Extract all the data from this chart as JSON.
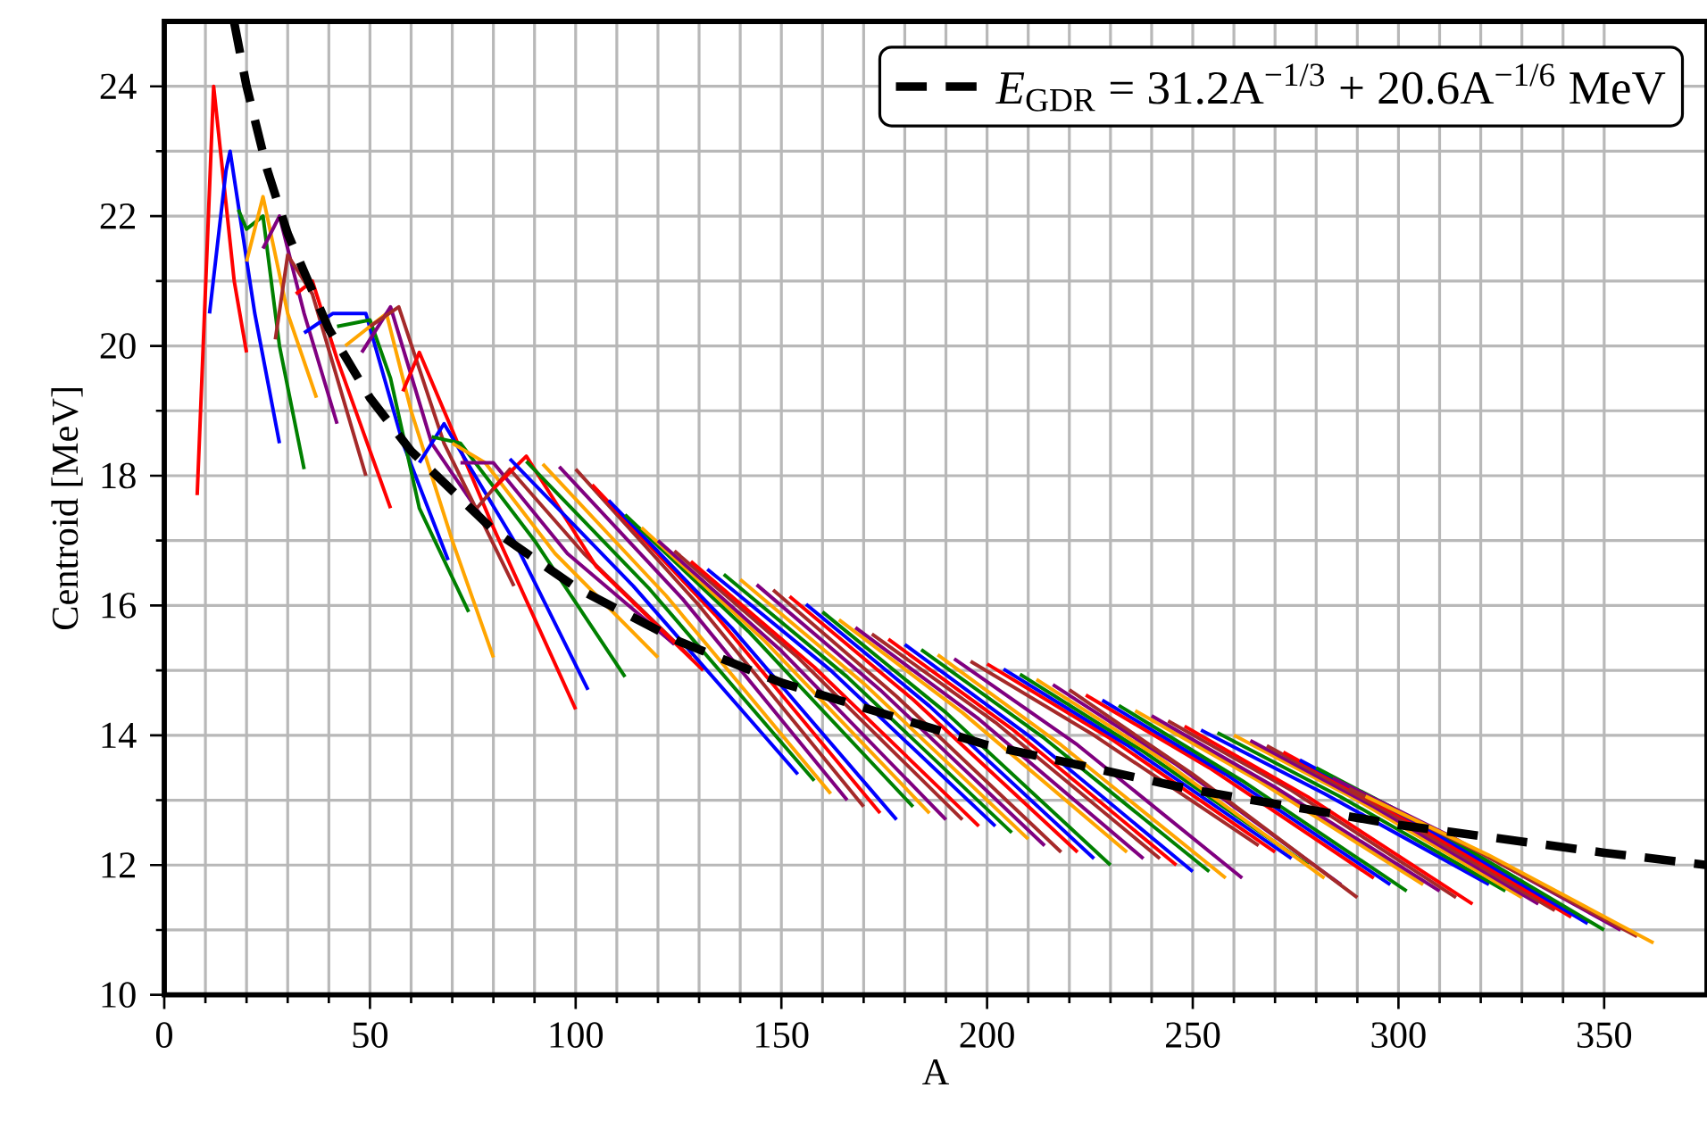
{
  "chart_data": {
    "type": "line",
    "xlabel": "A",
    "ylabel": "Centroid [MeV]",
    "xlim": [
      0,
      375
    ],
    "ylim": [
      10,
      25
    ],
    "xticks": [
      0,
      50,
      100,
      150,
      200,
      250,
      300,
      350
    ],
    "yticks": [
      10,
      12,
      14,
      16,
      18,
      20,
      22,
      24
    ],
    "grid": true,
    "legend": "top right",
    "series": [
      {
        "color": "#ff0000",
        "x": [
          8,
          12,
          17,
          20
        ],
        "values": [
          17.7,
          24.0,
          21.0,
          19.9
        ]
      },
      {
        "color": "#0000ff",
        "x": [
          11,
          15,
          16,
          22,
          28
        ],
        "values": [
          20.5,
          22.7,
          23.0,
          20.5,
          18.5
        ]
      },
      {
        "color": "#008000",
        "x": [
          18,
          20,
          24,
          28,
          34
        ],
        "values": [
          22.1,
          21.8,
          22.0,
          20.0,
          18.1
        ]
      },
      {
        "color": "#ffa500",
        "x": [
          20,
          24,
          30,
          37
        ],
        "values": [
          21.3,
          22.3,
          20.5,
          19.2
        ]
      },
      {
        "color": "#800080",
        "x": [
          24,
          28,
          34,
          42
        ],
        "values": [
          21.5,
          22.0,
          20.5,
          18.8
        ]
      },
      {
        "color": "#a52a2a",
        "x": [
          27,
          30,
          36,
          49
        ],
        "values": [
          20.1,
          21.4,
          20.8,
          18.0
        ]
      },
      {
        "color": "#ff0000",
        "x": [
          32,
          36,
          42,
          55
        ],
        "values": [
          20.8,
          21.0,
          19.8,
          17.5
        ]
      },
      {
        "color": "#0000ff",
        "x": [
          34,
          41,
          49,
          58,
          69
        ],
        "values": [
          20.2,
          20.5,
          20.5,
          18.5,
          16.7
        ]
      },
      {
        "color": "#008000",
        "x": [
          42,
          50,
          55,
          62,
          74
        ],
        "values": [
          20.3,
          20.4,
          19.5,
          17.5,
          15.9
        ]
      },
      {
        "color": "#ffa500",
        "x": [
          44,
          54,
          60,
          70,
          80
        ],
        "values": [
          20.0,
          20.5,
          19.0,
          17.0,
          15.2
        ]
      },
      {
        "color": "#800080",
        "x": [
          48,
          55,
          65,
          79
        ],
        "values": [
          19.9,
          20.6,
          18.5,
          17.2
        ]
      },
      {
        "color": "#a52a2a",
        "x": [
          50,
          57,
          68,
          85
        ],
        "values": [
          20.3,
          20.6,
          18.5,
          16.3
        ]
      },
      {
        "color": "#ff0000",
        "x": [
          58,
          62,
          80,
          100
        ],
        "values": [
          19.3,
          19.9,
          17.2,
          14.4
        ]
      },
      {
        "color": "#0000ff",
        "x": [
          62,
          68,
          85,
          103
        ],
        "values": [
          18.2,
          18.8,
          17.0,
          14.7
        ]
      },
      {
        "color": "#008000",
        "x": [
          65,
          72,
          90,
          112
        ],
        "values": [
          18.6,
          18.5,
          17.0,
          14.9
        ]
      },
      {
        "color": "#ffa500",
        "x": [
          70,
          78,
          95,
          120
        ],
        "values": [
          18.5,
          18.2,
          16.8,
          15.2
        ]
      },
      {
        "color": "#800080",
        "x": [
          72,
          80,
          98,
          124
        ],
        "values": [
          18.2,
          18.2,
          16.8,
          15.4
        ]
      },
      {
        "color": "#a52a2a",
        "x": [
          76,
          84,
          102,
          128
        ],
        "values": [
          17.5,
          18.1,
          16.8,
          15.2
        ]
      },
      {
        "color": "#ff0000",
        "x": [
          80,
          88,
          105,
          131
        ],
        "values": [
          17.8,
          18.3,
          16.6,
          15.0
        ]
      },
      {
        "color": "#0000ff",
        "x": [
          84,
          114,
          154
        ],
        "values": [
          18.26,
          16.3,
          13.4
        ]
      },
      {
        "color": "#008000",
        "x": [
          88,
          118,
          158
        ],
        "values": [
          18.22,
          16.25,
          13.3
        ]
      },
      {
        "color": "#ffa500",
        "x": [
          92,
          122,
          162
        ],
        "values": [
          18.18,
          16.15,
          13.1
        ]
      },
      {
        "color": "#800080",
        "x": [
          96,
          126,
          166
        ],
        "values": [
          18.14,
          16.1,
          13.0
        ]
      },
      {
        "color": "#a52a2a",
        "x": [
          100,
          130,
          170
        ],
        "values": [
          18.1,
          16.0,
          12.9
        ]
      },
      {
        "color": "#ff0000",
        "x": [
          104,
          134,
          174
        ],
        "values": [
          17.86,
          15.85,
          12.8
        ]
      },
      {
        "color": "#0000ff",
        "x": [
          108,
          138,
          178
        ],
        "values": [
          17.62,
          15.65,
          12.7
        ]
      },
      {
        "color": "#008000",
        "x": [
          112,
          142,
          182
        ],
        "values": [
          17.4,
          15.6,
          12.9
        ]
      },
      {
        "color": "#ffa500",
        "x": [
          116,
          146,
          186
        ],
        "values": [
          17.2,
          15.45,
          12.8
        ]
      },
      {
        "color": "#800080",
        "x": [
          120,
          150,
          190
        ],
        "values": [
          17.0,
          15.3,
          12.7
        ]
      },
      {
        "color": "#a52a2a",
        "x": [
          124,
          154,
          194
        ],
        "values": [
          16.84,
          15.2,
          12.7
        ]
      },
      {
        "color": "#ff0000",
        "x": [
          128,
          158,
          198
        ],
        "values": [
          16.68,
          15.05,
          12.6
        ]
      },
      {
        "color": "#0000ff",
        "x": [
          132,
          162,
          202
        ],
        "values": [
          16.56,
          15.0,
          12.6
        ]
      },
      {
        "color": "#008000",
        "x": [
          136,
          166,
          206
        ],
        "values": [
          16.48,
          14.9,
          12.5
        ]
      },
      {
        "color": "#ffa500",
        "x": [
          140,
          170,
          210
        ],
        "values": [
          16.4,
          14.8,
          12.4
        ]
      },
      {
        "color": "#800080",
        "x": [
          144,
          174,
          214
        ],
        "values": [
          16.32,
          14.7,
          12.3
        ]
      },
      {
        "color": "#a52a2a",
        "x": [
          148,
          178,
          218
        ],
        "values": [
          16.24,
          14.6,
          12.2
        ]
      },
      {
        "color": "#ff0000",
        "x": [
          152,
          182,
          222
        ],
        "values": [
          16.14,
          14.55,
          12.2
        ]
      },
      {
        "color": "#0000ff",
        "x": [
          156,
          186,
          226
        ],
        "values": [
          16.02,
          14.45,
          12.1
        ]
      },
      {
        "color": "#008000",
        "x": [
          160,
          190,
          230
        ],
        "values": [
          15.9,
          14.35,
          12.0
        ]
      },
      {
        "color": "#ffa500",
        "x": [
          164,
          194,
          234
        ],
        "values": [
          15.78,
          14.35,
          12.2
        ]
      },
      {
        "color": "#800080",
        "x": [
          168,
          198,
          238
        ],
        "values": [
          15.66,
          14.25,
          12.1
        ]
      },
      {
        "color": "#a52a2a",
        "x": [
          172,
          202,
          242
        ],
        "values": [
          15.56,
          14.2,
          12.1
        ]
      },
      {
        "color": "#ff0000",
        "x": [
          176,
          206,
          246
        ],
        "values": [
          15.48,
          14.1,
          12.0
        ]
      },
      {
        "color": "#0000ff",
        "x": [
          180,
          210,
          250
        ],
        "values": [
          15.4,
          14.0,
          11.9
        ]
      },
      {
        "color": "#008000",
        "x": [
          184,
          214,
          254
        ],
        "values": [
          15.32,
          13.95,
          11.9
        ]
      },
      {
        "color": "#ffa500",
        "x": [
          188,
          218,
          258
        ],
        "values": [
          15.24,
          13.85,
          11.8
        ]
      },
      {
        "color": "#800080",
        "x": [
          192,
          222,
          262
        ],
        "values": [
          15.18,
          13.85,
          11.8
        ]
      },
      {
        "color": "#a52a2a",
        "x": [
          196,
          226,
          266
        ],
        "values": [
          15.14,
          14.0,
          12.3
        ]
      },
      {
        "color": "#ff0000",
        "x": [
          200,
          230,
          270
        ],
        "values": [
          15.1,
          13.95,
          12.2
        ]
      },
      {
        "color": "#0000ff",
        "x": [
          204,
          234,
          274
        ],
        "values": [
          15.02,
          13.85,
          12.1
        ]
      },
      {
        "color": "#008000",
        "x": [
          208,
          238,
          278
        ],
        "values": [
          14.94,
          13.75,
          12.0
        ]
      },
      {
        "color": "#ffa500",
        "x": [
          212,
          242,
          282
        ],
        "values": [
          14.86,
          13.65,
          11.8
        ]
      },
      {
        "color": "#800080",
        "x": [
          216,
          246,
          286
        ],
        "values": [
          14.78,
          13.55,
          11.7
        ]
      },
      {
        "color": "#a52a2a",
        "x": [
          220,
          250,
          290
        ],
        "values": [
          14.7,
          13.4,
          11.5
        ]
      },
      {
        "color": "#ff0000",
        "x": [
          224,
          254,
          294
        ],
        "values": [
          14.62,
          13.5,
          11.8
        ]
      },
      {
        "color": "#0000ff",
        "x": [
          228,
          258,
          298
        ],
        "values": [
          14.54,
          13.4,
          11.7
        ]
      },
      {
        "color": "#008000",
        "x": [
          232,
          262,
          302
        ],
        "values": [
          14.46,
          13.3,
          11.6
        ]
      },
      {
        "color": "#ffa500",
        "x": [
          236,
          266,
          306
        ],
        "values": [
          14.38,
          13.3,
          11.7
        ]
      },
      {
        "color": "#800080",
        "x": [
          240,
          270,
          310
        ],
        "values": [
          14.3,
          13.2,
          11.6
        ]
      },
      {
        "color": "#a52a2a",
        "x": [
          244,
          274,
          314
        ],
        "values": [
          14.22,
          13.15,
          11.5
        ]
      },
      {
        "color": "#ff0000",
        "x": [
          248,
          278,
          318
        ],
        "values": [
          14.14,
          13.05,
          11.4
        ]
      },
      {
        "color": "#0000ff",
        "x": [
          252,
          282,
          322
        ],
        "values": [
          14.08,
          13.1,
          11.7
        ]
      },
      {
        "color": "#008000",
        "x": [
          256,
          286,
          326
        ],
        "values": [
          14.04,
          13.05,
          11.6
        ]
      },
      {
        "color": "#ffa500",
        "x": [
          260,
          290,
          330
        ],
        "values": [
          14.0,
          13.0,
          11.5
        ]
      },
      {
        "color": "#800080",
        "x": [
          264,
          294,
          334
        ],
        "values": [
          13.92,
          12.9,
          11.4
        ]
      },
      {
        "color": "#a52a2a",
        "x": [
          268,
          298,
          338
        ],
        "values": [
          13.84,
          12.8,
          11.3
        ]
      },
      {
        "color": "#ff0000",
        "x": [
          272,
          302,
          342
        ],
        "values": [
          13.74,
          12.7,
          11.2
        ]
      },
      {
        "color": "#0000ff",
        "x": [
          276,
          306,
          346
        ],
        "values": [
          13.62,
          12.6,
          11.1
        ]
      },
      {
        "color": "#008000",
        "x": [
          280,
          310,
          350
        ],
        "values": [
          13.5,
          12.5,
          11.0
        ]
      },
      {
        "color": "#800080",
        "x": [
          284,
          314,
          354
        ],
        "values": [
          13.34,
          12.4,
          11.0
        ]
      },
      {
        "color": "#a52a2a",
        "x": [
          288,
          318,
          358
        ],
        "values": [
          13.18,
          12.25,
          10.9
        ]
      },
      {
        "color": "#ffa500",
        "x": [
          292,
          322,
          362
        ],
        "values": [
          13.06,
          12.15,
          10.8
        ]
      },
      {
        "name": "*E*$_{GDR}$ = 31.2A$^{−1/3}$ + 20.6A$^{−1/6}$ MeV",
        "color": "#000000",
        "line_style": "dashed",
        "x": [
          17,
          20,
          25,
          30,
          40,
          50,
          60,
          80,
          100,
          125,
          150,
          200,
          250,
          300,
          350,
          375
        ],
        "values": [
          24.98,
          24.0,
          22.72,
          21.73,
          20.26,
          19.2,
          18.38,
          17.16,
          16.28,
          15.45,
          14.81,
          13.85,
          13.16,
          12.62,
          12.19,
          12.0
        ]
      }
    ]
  }
}
